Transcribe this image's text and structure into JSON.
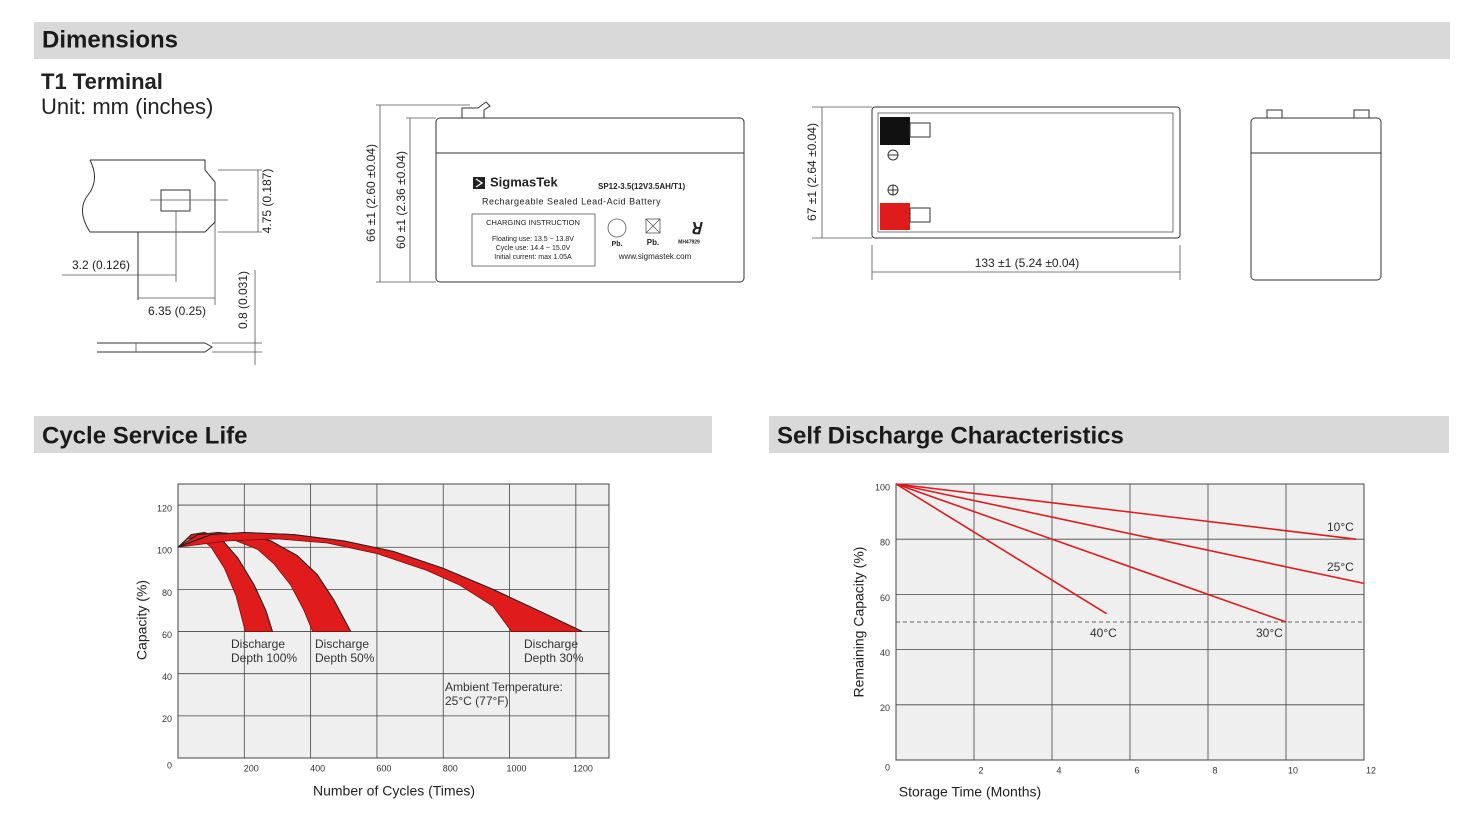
{
  "dimensions": {
    "title": "Dimensions",
    "terminal": {
      "title": "T1 Terminal",
      "unit": "Unit: mm (inches)",
      "height": "4.75 (0.187)",
      "offset": "3.2 (0.126)",
      "width": "6.35 (0.25)",
      "thickness": "0.8 (0.031)"
    },
    "front": {
      "height_total": "66 ±1 (2.60 ±0.04)",
      "height_case": "60 ±1 (2.36 ±0.04)",
      "brand": "SigmasTek",
      "model": "SP12-3.5(12V3.5AH/T1)",
      "description": "Rechargeable Sealed Lead-Acid Battery",
      "charging_title": "CHARGING INSTRUCTION",
      "charging_lines": [
        "Floating use: 13.5 ~ 13.8V",
        "Cycle use: 14.4 ~ 15.0V",
        "Initial current: max 1.05A"
      ],
      "marks": [
        "Pb.",
        "Pb.",
        "MH47929"
      ],
      "website": "www.sigmastek.com"
    },
    "top": {
      "height": "67 ±1 (2.64 ±0.04)",
      "width": "133 ±1 (5.24 ±0.04)"
    }
  },
  "chart_data": [
    {
      "type": "area",
      "title": "Cycle Service Life",
      "x_label": "Number of Cycles (Times)",
      "y_label": "Capacity (%)",
      "xlim": [
        0,
        1300
      ],
      "ylim": [
        0,
        130
      ],
      "xticks": [
        200,
        400,
        600,
        800,
        1000,
        1200
      ],
      "yticks": [
        0,
        20,
        40,
        60,
        80,
        100,
        120
      ],
      "grid": true,
      "color": "#e01b1b",
      "annotation": [
        "Ambient Temperature:",
        "25°C (77°F)"
      ],
      "series": [
        {
          "label": [
            "Discharge",
            "Depth 100%"
          ],
          "upper": {
            "x": [
              0,
              40,
              80,
              130,
              180,
              230,
              265,
              285
            ],
            "y": [
              100,
              106,
              107,
              104,
              95,
              82,
              70,
              60
            ]
          },
          "lower": {
            "x": [
              0,
              30,
              60,
              100,
              140,
              175,
              203
            ],
            "y": [
              100,
              104,
              105,
              100,
              90,
              77,
              60
            ]
          }
        },
        {
          "label": [
            "Discharge",
            "Depth 50%"
          ],
          "upper": {
            "x": [
              0,
              60,
              120,
              200,
              280,
              360,
              420,
              470,
              521
            ],
            "y": [
              100,
              106,
              107,
              106,
              103,
              96,
              87,
              75,
              60
            ]
          },
          "lower": {
            "x": [
              0,
              80,
              160,
              240,
              290,
              340,
              380,
              406
            ],
            "y": [
              100,
              105,
              104,
              99,
              92,
              82,
              70,
              60
            ]
          }
        },
        {
          "label": [
            "Discharge",
            "Depth 30%"
          ],
          "upper": {
            "x": [
              0,
              100,
              200,
              350,
              500,
              650,
              800,
              950,
              1100,
              1220
            ],
            "y": [
              100,
              106,
              107,
              106,
              103,
              98,
              90,
              80,
              69,
              60
            ]
          },
          "lower": {
            "x": [
              0,
              150,
              300,
              450,
              600,
              750,
              850,
              950,
              1006
            ],
            "y": [
              100,
              103,
              104,
              102,
              97,
              89,
              82,
              72,
              60
            ]
          }
        }
      ]
    },
    {
      "type": "line",
      "title": "Self Discharge Characteristics",
      "x_label": "Storage Time (Months)",
      "y_label": "Remaining Capacity (%)",
      "xlim": [
        0,
        12
      ],
      "ylim": [
        0,
        100
      ],
      "xticks": [
        2,
        4,
        6,
        8,
        10,
        12
      ],
      "yticks": [
        0,
        20,
        40,
        60,
        80,
        100
      ],
      "grid": true,
      "reference_line": 50,
      "series": [
        {
          "name": "10°C",
          "color": "#e01b1b",
          "x": [
            0,
            11.8
          ],
          "values": [
            100,
            80
          ]
        },
        {
          "name": "25°C",
          "color": "#e01b1b",
          "x": [
            0,
            12
          ],
          "values": [
            100,
            64
          ]
        },
        {
          "name": "30°C",
          "color": "#e01b1b",
          "x": [
            0,
            10
          ],
          "values": [
            100,
            50
          ]
        },
        {
          "name": "40°C",
          "color": "#e01b1b",
          "x": [
            0,
            5.4
          ],
          "values": [
            100,
            53
          ]
        }
      ]
    }
  ]
}
